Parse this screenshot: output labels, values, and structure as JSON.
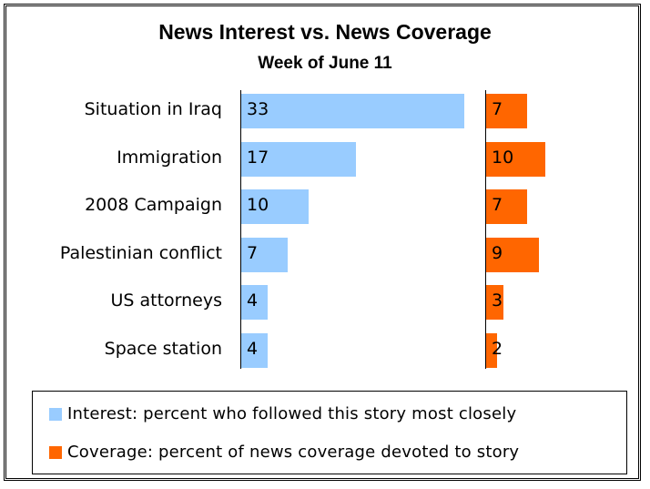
{
  "chart_data": {
    "type": "bar",
    "title": "News Interest vs. News Coverage",
    "subtitle": "Week of June 11",
    "categories": [
      "Situation in Iraq",
      "Immigration",
      "2008 Campaign",
      "Palestinian conflict",
      "US attorneys",
      "Space station"
    ],
    "series": [
      {
        "name": "Interest: percent who followed this story most closely",
        "values": [
          33,
          17,
          10,
          7,
          4,
          4
        ],
        "color": "#99ccff"
      },
      {
        "name": "Coverage: percent of news coverage devoted to story",
        "values": [
          7,
          10,
          7,
          9,
          3,
          2
        ],
        "color": "#ff6600"
      }
    ],
    "legend_position": "bottom",
    "grid": false
  }
}
